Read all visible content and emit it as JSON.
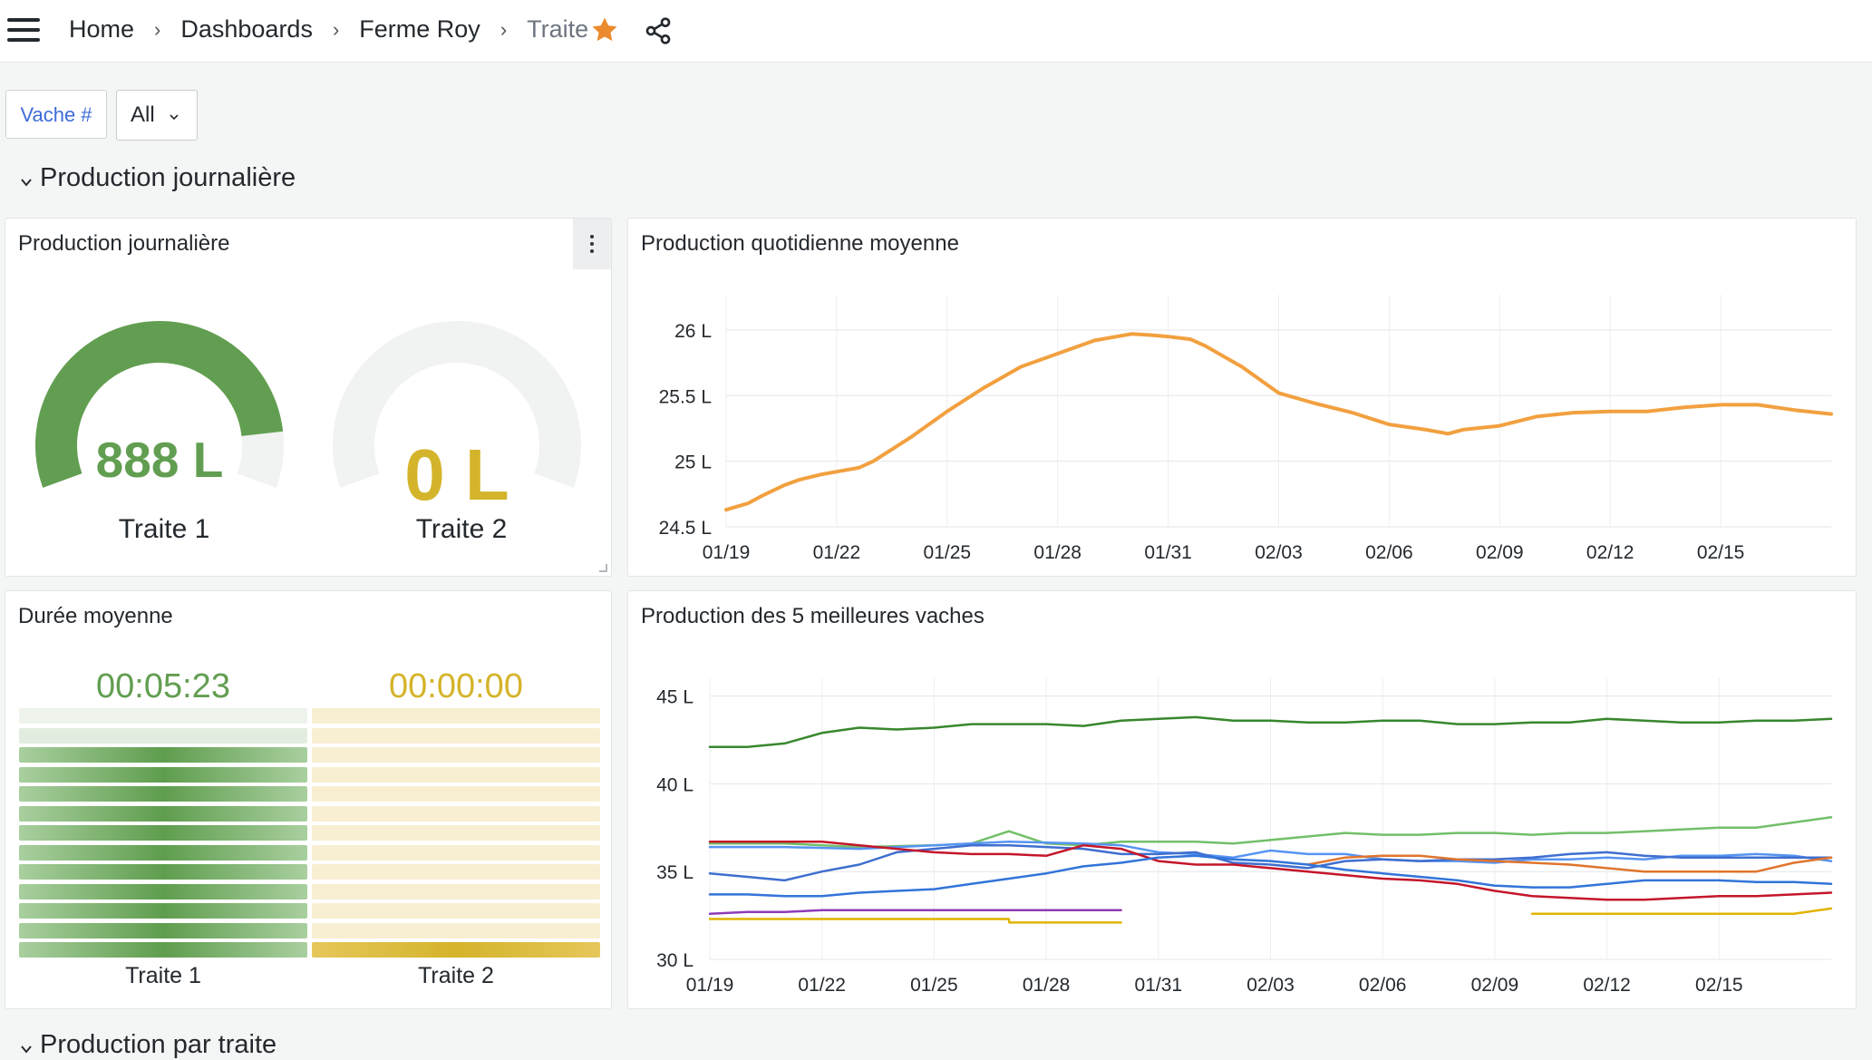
{
  "breadcrumb": {
    "home": "Home",
    "dashboards": "Dashboards",
    "folder": "Ferme Roy",
    "current": "Traite"
  },
  "variable": {
    "label": "Vache #",
    "value": "All"
  },
  "rows": [
    {
      "title": "Production journalière"
    },
    {
      "title": "Production par traite"
    }
  ],
  "colors": {
    "green": "#629e51",
    "yellow": "#d4b42a",
    "orange": "#f2a03f",
    "star": "#ec8a2f",
    "link": "#3e6bd8"
  },
  "gauge_panel": {
    "title": "Production journalière",
    "gauges": [
      {
        "label": "Traite 1",
        "value": "888 L",
        "fraction": 0.88
      },
      {
        "label": "Traite 2",
        "value": "0 L",
        "fraction": 0
      }
    ]
  },
  "duration_panel": {
    "title": "Durée moyenne",
    "bars": [
      {
        "label": "Traite 1",
        "value": "00:05:23",
        "lit_cells": 11,
        "total_cells": 13
      },
      {
        "label": "Traite 2",
        "value": "00:00:00",
        "lit_cells": 0,
        "total_cells": 13
      }
    ]
  },
  "chart_data": [
    {
      "type": "line",
      "title": "Production quotidienne moyenne",
      "x_ticks": [
        "01/19",
        "01/22",
        "01/25",
        "01/28",
        "01/31",
        "02/03",
        "02/06",
        "02/09",
        "02/12",
        "02/15"
      ],
      "y_ticks": [
        "24.5 L",
        "25 L",
        "25.5 L",
        "26 L"
      ],
      "ylim": [
        24.5,
        26.2
      ],
      "xlim": [
        0,
        30
      ],
      "series": [
        {
          "color": "#f2a03f",
          "x": [
            0,
            0.6,
            1,
            1.6,
            2,
            2.6,
            3,
            3.6,
            4,
            5,
            6,
            7,
            8,
            9,
            10,
            11,
            11.6,
            12,
            12.6,
            13,
            14,
            15,
            16,
            17,
            18,
            19,
            19.6,
            20,
            21,
            22,
            23,
            24,
            25,
            26,
            27,
            28,
            29,
            30
          ],
          "y": [
            24.63,
            24.68,
            24.74,
            24.82,
            24.86,
            24.9,
            24.92,
            24.95,
            25.0,
            25.18,
            25.38,
            25.56,
            25.72,
            25.82,
            25.92,
            25.97,
            25.96,
            25.95,
            25.93,
            25.88,
            25.72,
            25.52,
            25.44,
            25.37,
            25.28,
            25.24,
            25.21,
            25.24,
            25.27,
            25.34,
            25.37,
            25.38,
            25.38,
            25.41,
            25.43,
            25.43,
            25.39,
            25.36
          ]
        }
      ]
    },
    {
      "type": "line",
      "title": "Production des 5 meilleures vaches",
      "x_ticks": [
        "01/19",
        "01/22",
        "01/25",
        "01/28",
        "01/31",
        "02/03",
        "02/06",
        "02/09",
        "02/12",
        "02/15"
      ],
      "y_ticks": [
        "30 L",
        "35 L",
        "40 L",
        "45 L"
      ],
      "ylim": [
        30,
        45.5
      ],
      "xlim": [
        0,
        30
      ],
      "series": [
        {
          "color": "#37872d",
          "x": [
            0,
            1,
            2,
            3,
            4,
            5,
            6,
            7,
            8,
            9,
            10,
            11,
            12,
            13,
            14,
            15,
            16,
            17,
            18,
            19,
            20,
            21,
            22,
            23,
            24,
            25,
            26,
            27,
            28,
            29,
            30
          ],
          "y": [
            42.1,
            42.1,
            42.3,
            42.9,
            43.2,
            43.1,
            43.2,
            43.4,
            43.4,
            43.4,
            43.3,
            43.6,
            43.7,
            43.8,
            43.6,
            43.6,
            43.5,
            43.5,
            43.6,
            43.6,
            43.4,
            43.4,
            43.5,
            43.5,
            43.7,
            43.6,
            43.5,
            43.5,
            43.6,
            43.6,
            43.7
          ]
        },
        {
          "color": "#73bf69",
          "x": [
            0,
            2,
            4,
            6,
            7,
            8,
            9,
            10,
            11,
            12,
            13,
            14,
            15,
            16,
            17,
            18,
            19,
            20,
            21,
            22,
            23,
            24,
            25,
            26,
            27,
            28,
            29,
            30
          ],
          "y": [
            36.6,
            36.6,
            36.4,
            36.5,
            36.6,
            37.3,
            36.6,
            36.5,
            36.7,
            36.7,
            36.7,
            36.6,
            36.8,
            37.0,
            37.2,
            37.1,
            37.1,
            37.2,
            37.2,
            37.1,
            37.2,
            37.2,
            37.3,
            37.4,
            37.5,
            37.5,
            37.8,
            38.1
          ]
        },
        {
          "color": "#5794f2",
          "x": [
            0,
            2,
            4,
            6,
            8,
            10,
            11,
            12,
            13,
            14,
            15,
            16,
            17,
            18,
            19,
            20,
            21,
            22,
            23,
            24,
            25,
            26,
            27,
            28,
            29,
            30
          ],
          "y": [
            36.4,
            36.4,
            36.3,
            36.5,
            36.7,
            36.6,
            36.5,
            36.1,
            36.0,
            35.8,
            36.2,
            36.0,
            36.0,
            35.7,
            35.6,
            35.6,
            35.5,
            35.7,
            35.7,
            35.8,
            35.7,
            35.9,
            35.9,
            36.0,
            35.9,
            35.6
          ]
        },
        {
          "color": "#3f6ecf",
          "x": [
            0,
            1,
            2,
            3,
            4,
            5,
            6,
            7,
            8,
            9,
            10,
            11,
            12,
            13,
            14,
            15,
            16,
            17,
            18,
            19,
            20,
            21,
            22,
            23,
            24,
            25,
            26,
            27,
            28,
            29,
            30
          ],
          "y": [
            34.9,
            34.7,
            34.5,
            35.0,
            35.4,
            36.1,
            36.3,
            36.5,
            36.5,
            36.4,
            36.3,
            36.0,
            36.0,
            36.1,
            35.5,
            35.4,
            35.2,
            35.6,
            35.7,
            35.6,
            35.7,
            35.7,
            35.8,
            36.0,
            36.1,
            35.9,
            35.8,
            35.8,
            35.8,
            35.8,
            35.8
          ]
        },
        {
          "color": "#e0752d",
          "x": [
            16,
            17,
            18,
            19,
            20,
            21,
            22,
            23,
            24,
            25,
            26,
            27,
            28,
            29,
            30
          ],
          "y": [
            35.4,
            35.8,
            35.9,
            35.9,
            35.7,
            35.6,
            35.5,
            35.4,
            35.2,
            35.0,
            35.0,
            35.0,
            35.0,
            35.5,
            35.8
          ]
        },
        {
          "color": "#c4162a",
          "x": [
            0,
            1,
            2,
            3,
            4,
            5,
            6,
            7,
            8,
            9,
            10,
            11,
            12,
            13,
            14,
            15,
            16,
            17,
            18,
            19,
            20,
            21,
            22,
            23,
            24,
            25,
            26,
            27,
            28,
            29,
            30
          ],
          "y": [
            36.7,
            36.7,
            36.7,
            36.7,
            36.5,
            36.3,
            36.1,
            36.0,
            36.0,
            35.9,
            36.5,
            36.3,
            35.6,
            35.4,
            35.4,
            35.2,
            35.0,
            34.8,
            34.6,
            34.5,
            34.3,
            33.9,
            33.6,
            33.5,
            33.4,
            33.4,
            33.5,
            33.6,
            33.6,
            33.7,
            33.8
          ]
        },
        {
          "color": "#3274d9",
          "x": [
            0,
            1,
            2,
            3,
            4,
            5,
            6,
            7,
            8,
            9,
            10,
            11,
            12,
            13,
            14,
            15,
            16,
            17,
            18,
            19,
            20,
            21,
            22,
            23,
            24,
            25,
            26,
            27,
            28,
            29,
            30
          ],
          "y": [
            33.7,
            33.7,
            33.6,
            33.6,
            33.8,
            33.9,
            34.0,
            34.3,
            34.6,
            34.9,
            35.3,
            35.5,
            35.8,
            35.9,
            35.7,
            35.6,
            35.4,
            35.1,
            34.9,
            34.7,
            34.5,
            34.2,
            34.1,
            34.1,
            34.3,
            34.5,
            34.5,
            34.5,
            34.4,
            34.4,
            34.3
          ]
        },
        {
          "color": "#8f3bb8",
          "x": [
            0,
            1,
            2,
            3,
            4,
            5,
            6,
            7,
            8,
            9,
            10,
            11
          ],
          "y": [
            32.6,
            32.7,
            32.7,
            32.8,
            32.8,
            32.8,
            32.8,
            32.8,
            32.8,
            32.8,
            32.8,
            32.8
          ]
        },
        {
          "color": "#e0b400",
          "x": [
            0,
            1,
            2,
            3,
            4,
            5,
            6,
            7,
            8,
            8.01,
            9,
            10,
            11
          ],
          "y": [
            32.3,
            32.3,
            32.3,
            32.3,
            32.3,
            32.3,
            32.3,
            32.3,
            32.3,
            32.1,
            32.1,
            32.1,
            32.1
          ]
        },
        {
          "color": "#e0b400",
          "x": [
            22,
            23,
            24,
            25,
            26,
            27,
            28,
            29,
            30
          ],
          "y": [
            32.6,
            32.6,
            32.6,
            32.6,
            32.6,
            32.6,
            32.6,
            32.6,
            32.9
          ]
        }
      ]
    }
  ]
}
